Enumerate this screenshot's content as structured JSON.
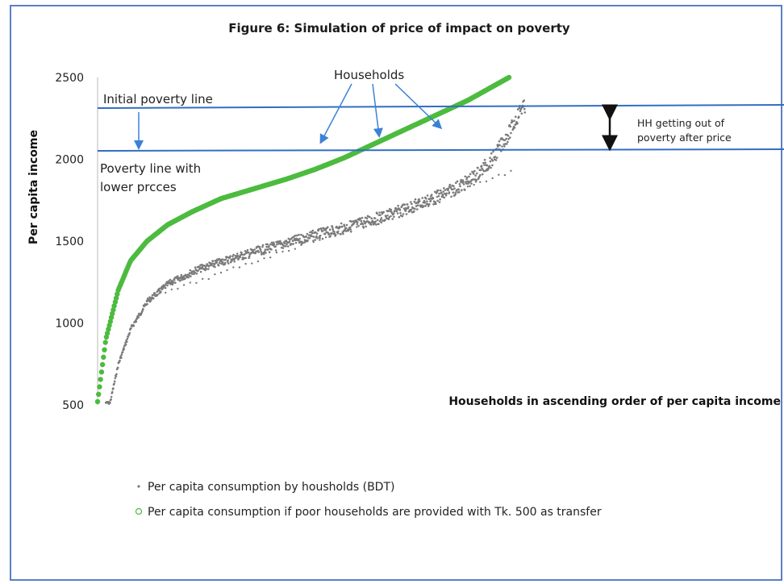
{
  "colors": {
    "frame": "#5b80c3",
    "gray_series": "#7a7a7a",
    "green_series": "#4cbb3f",
    "poverty_lines": "#2f6fc4",
    "arrows": "#3b82d6"
  },
  "chart_data": {
    "type": "scatter",
    "title": "Figure 6: Simulation of price of impact on poverty",
    "xlabel": "Households in ascending order of per capita income",
    "ylabel": "Per capita income",
    "ylim": [
      500,
      2500
    ],
    "yticks": [
      "2500",
      "2000",
      "1500",
      "1000",
      "500"
    ],
    "grid": false,
    "series": [
      {
        "name": "Per capita consumption by housholds (BDT)",
        "marker": "dot",
        "x": [
          0.01,
          0.03,
          0.06,
          0.1,
          0.15,
          0.22,
          0.3,
          0.38,
          0.46,
          0.5,
          0.55,
          0.6,
          0.64,
          0.68,
          0.72,
          0.76,
          0.8,
          0.83,
          0.86,
          0.88,
          0.9,
          0.92,
          0.93,
          0.94,
          0.95,
          0.96,
          0.97,
          0.98,
          0.99
        ],
        "y": [
          520,
          760,
          980,
          1150,
          1260,
          1350,
          1420,
          1480,
          1540,
          1570,
          1600,
          1640,
          1670,
          1700,
          1740,
          1780,
          1820,
          1860,
          1900,
          1940,
          1990,
          2040,
          2080,
          2120,
          2160,
          2200,
          2250,
          2300,
          2360
        ]
      },
      {
        "name": "Per capita consumption if poor households are provided with Tk. 500 as transfer",
        "marker": "circle",
        "x": [
          0.0,
          0.02,
          0.05,
          0.08,
          0.12,
          0.17,
          0.23,
          0.3,
          0.38,
          0.46,
          0.53,
          0.6,
          0.66,
          0.72,
          0.78,
          0.84,
          0.9,
          0.95,
          1.0
        ],
        "y": [
          520,
          900,
          1200,
          1380,
          1500,
          1600,
          1680,
          1760,
          1820,
          1880,
          1940,
          2010,
          2080,
          2150,
          2220,
          2290,
          2360,
          2430,
          2500
        ]
      }
    ],
    "reference_lines": [
      {
        "label": "Initial poverty line",
        "y": 2290
      },
      {
        "label": "Poverty line with lower prcces",
        "y": 2040
      }
    ],
    "annotations": {
      "households": "Households",
      "hh_out_line1": "HH getting out of",
      "hh_out_line2": "poverty after price",
      "initial_line_label": "Initial poverty line",
      "lower_line_label_1": "Poverty line with",
      "lower_line_label_2": "lower prcces"
    },
    "legend": {
      "position": "bottom-left",
      "items": [
        "Per capita consumption by housholds (BDT)",
        "Per capita consumption if poor households are provided with Tk. 500 as transfer"
      ]
    }
  }
}
